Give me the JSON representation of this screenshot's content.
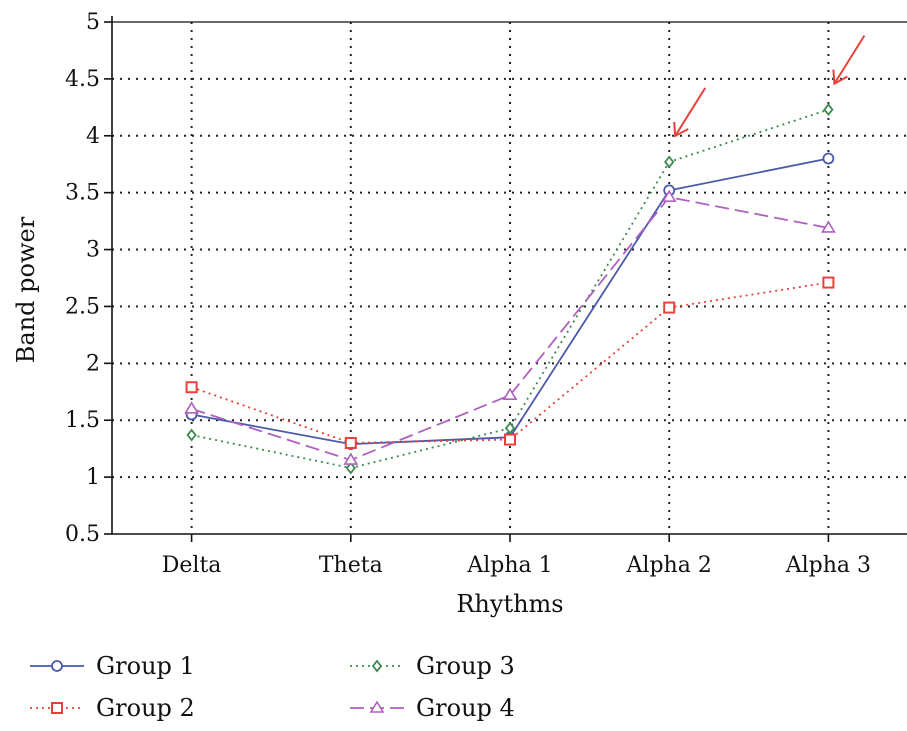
{
  "chart_data": {
    "type": "line",
    "title": "",
    "xlabel": "Rhythms",
    "ylabel": "Band power",
    "categories": [
      "Delta",
      "Theta",
      "Alpha 1",
      "Alpha 2",
      "Alpha 3"
    ],
    "ylim": [
      0.5,
      5
    ],
    "yticks": [
      "0.5",
      "1",
      "1.5",
      "2",
      "2.5",
      "3",
      "3.5",
      "4",
      "4.5",
      "5"
    ],
    "grid": true,
    "legend_position": "bottom",
    "series": [
      {
        "name": "Group 1",
        "values": [
          1.55,
          1.29,
          1.35,
          3.52,
          3.8
        ],
        "color": "#4a5aa8",
        "marker": "circle",
        "dash": "solid"
      },
      {
        "name": "Group 2",
        "values": [
          1.79,
          1.3,
          1.33,
          2.49,
          2.71
        ],
        "color": "#e8413a",
        "marker": "square",
        "dash": "dotted"
      },
      {
        "name": "Group 3",
        "values": [
          1.37,
          1.08,
          1.43,
          3.77,
          4.23
        ],
        "color": "#3c8a4e",
        "marker": "diamond",
        "dash": "dotted"
      },
      {
        "name": "Group 4",
        "values": [
          1.6,
          1.15,
          1.72,
          3.46,
          3.19
        ],
        "color": "#b060c0",
        "marker": "triangle",
        "dash": "dashed"
      }
    ],
    "annotations": [
      {
        "type": "arrow",
        "category": "Alpha 2",
        "color": "#e8413a"
      },
      {
        "type": "arrow",
        "category": "Alpha 3",
        "color": "#e8413a"
      }
    ]
  }
}
